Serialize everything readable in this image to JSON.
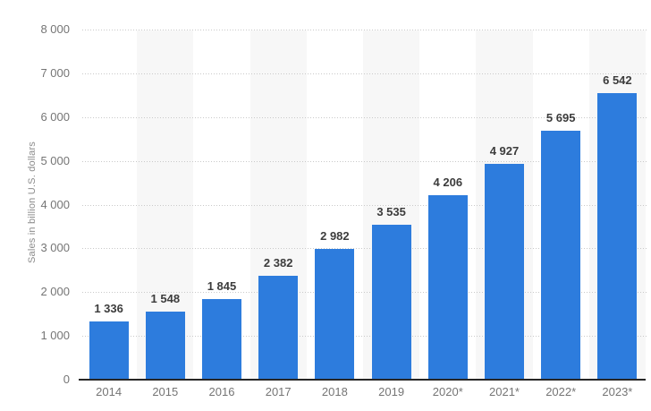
{
  "chart_data": {
    "type": "bar",
    "title": "",
    "categories": [
      "2014",
      "2015",
      "2016",
      "2017",
      "2018",
      "2019",
      "2020*",
      "2021*",
      "2022*",
      "2023*"
    ],
    "values": [
      1336,
      1548,
      1845,
      2382,
      2982,
      3535,
      4206,
      4927,
      5695,
      6542
    ],
    "value_labels": [
      "1 336",
      "1 548",
      "1 845",
      "2 382",
      "2 982",
      "3 535",
      "4 206",
      "4 927",
      "5 695",
      "6 542"
    ],
    "xlabel": "",
    "ylabel": "Sales in billion U.S. dollars",
    "ylim": [
      0,
      8000
    ],
    "ytick_step": 1000,
    "ytick_labels": [
      "0",
      "1 000",
      "2 000",
      "3 000",
      "4 000",
      "5 000",
      "6 000",
      "7 000",
      "8 000"
    ],
    "grid": "horizontal-dotted",
    "legend_position": "none",
    "alternating_column_bands": true,
    "colors": {
      "bar": "#2d7cdd",
      "band": "#f7f7f7",
      "grid": "#c9c9c9",
      "axis_line": "#262626",
      "tick_text": "#757575",
      "value_text": "#3c3c3c",
      "ylabel_text": "#8c8c8c",
      "background": "#ffffff"
    }
  }
}
